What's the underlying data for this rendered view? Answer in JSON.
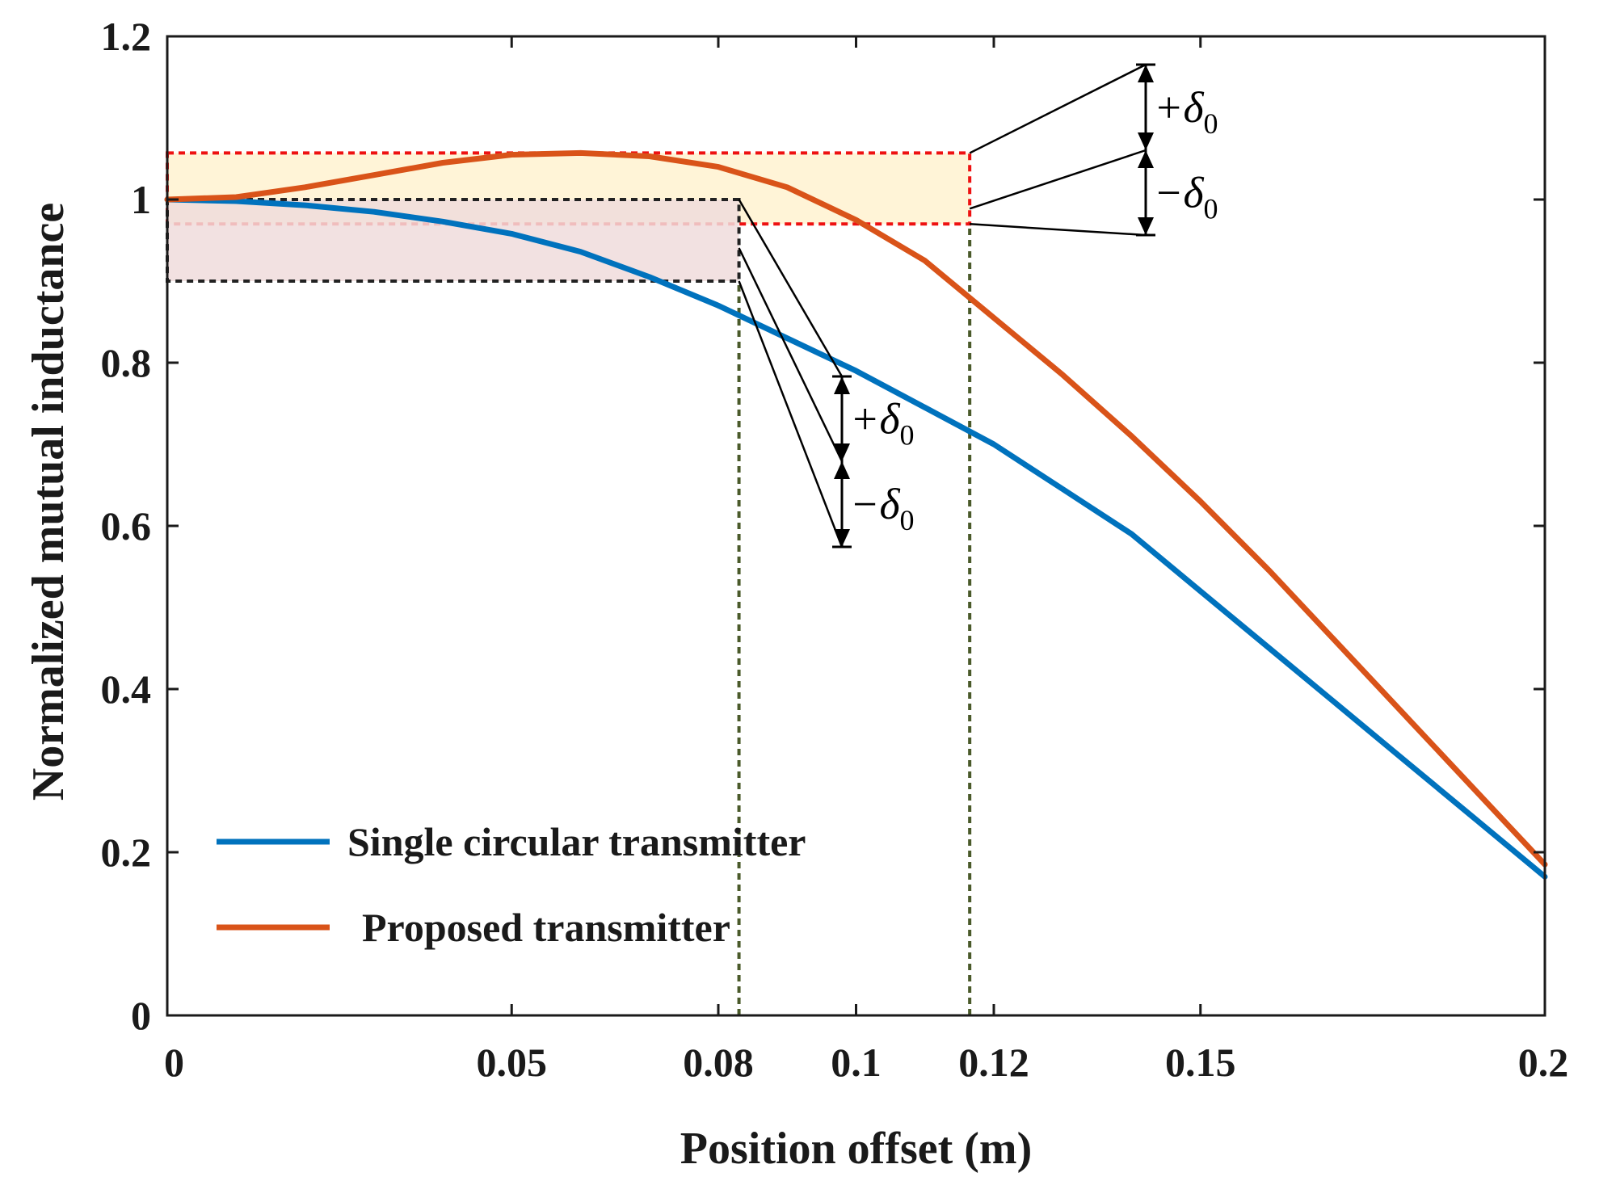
{
  "chart_data": {
    "type": "line",
    "title": "",
    "xlabel": "Position offset (m)",
    "ylabel": "Normalized mutual inductance",
    "xlim": [
      0,
      0.2
    ],
    "ylim": [
      0,
      1.2
    ],
    "xticks": [
      {
        "value": 0,
        "label": "0",
        "highlight": false
      },
      {
        "value": 0.05,
        "label": "0.05",
        "highlight": false
      },
      {
        "value": 0.08,
        "label": "0.08",
        "highlight": true
      },
      {
        "value": 0.1,
        "label": "0.1",
        "highlight": false
      },
      {
        "value": 0.12,
        "label": "0.12",
        "highlight": true
      },
      {
        "value": 0.15,
        "label": "0.15",
        "highlight": false
      },
      {
        "value": 0.2,
        "label": "0.2",
        "highlight": false
      }
    ],
    "yticks": [
      {
        "value": 0,
        "label": "0"
      },
      {
        "value": 0.2,
        "label": "0.2"
      },
      {
        "value": 0.4,
        "label": "0.4"
      },
      {
        "value": 0.6,
        "label": "0.6"
      },
      {
        "value": 0.8,
        "label": "0.8"
      },
      {
        "value": 1.0,
        "label": "1"
      },
      {
        "value": 1.2,
        "label": "1.2"
      }
    ],
    "series": [
      {
        "name": "Single circular transmitter",
        "color": "#0072BD",
        "x": [
          0,
          0.01,
          0.02,
          0.03,
          0.04,
          0.05,
          0.06,
          0.07,
          0.08,
          0.09,
          0.1,
          0.11,
          0.12,
          0.13,
          0.14,
          0.15,
          0.16,
          0.17,
          0.18,
          0.19,
          0.2
        ],
        "y": [
          1.0,
          0.998,
          0.993,
          0.985,
          0.973,
          0.958,
          0.936,
          0.905,
          0.87,
          0.83,
          0.79,
          0.745,
          0.7,
          0.645,
          0.59,
          0.52,
          0.45,
          0.38,
          0.31,
          0.24,
          0.17
        ]
      },
      {
        "name": "Proposed transmitter",
        "color": "#D95319",
        "x": [
          0,
          0.01,
          0.02,
          0.03,
          0.04,
          0.05,
          0.06,
          0.07,
          0.08,
          0.09,
          0.1,
          0.11,
          0.12,
          0.13,
          0.14,
          0.15,
          0.16,
          0.17,
          0.18,
          0.19,
          0.2
        ],
        "y": [
          1.0,
          1.003,
          1.015,
          1.03,
          1.045,
          1.055,
          1.057,
          1.053,
          1.04,
          1.015,
          0.975,
          0.925,
          0.855,
          0.785,
          0.71,
          0.63,
          0.545,
          0.455,
          0.365,
          0.275,
          0.185
        ]
      }
    ],
    "regions": [
      {
        "name": "proposed-tolerance-band",
        "x": [
          0,
          0.1165
        ],
        "y": [
          0.97,
          1.057
        ],
        "fill": "#FFF2D0",
        "stroke": "#EE1111"
      },
      {
        "name": "single-tolerance-band",
        "x": [
          0,
          0.083
        ],
        "y": [
          0.9,
          1.0
        ],
        "fill": "#F0DCDC",
        "stroke": "#222222"
      }
    ],
    "vlines": [
      {
        "x": 0.083,
        "color": "#4A5A2A"
      },
      {
        "x": 0.1165,
        "color": "#4A5A2A"
      }
    ],
    "annotations": {
      "plus_label": "+δ",
      "minus_label": "−δ",
      "subscript": "0"
    },
    "legend": {
      "placement": "lower-left"
    },
    "highlight_color": "#C0504D",
    "grid": false
  }
}
